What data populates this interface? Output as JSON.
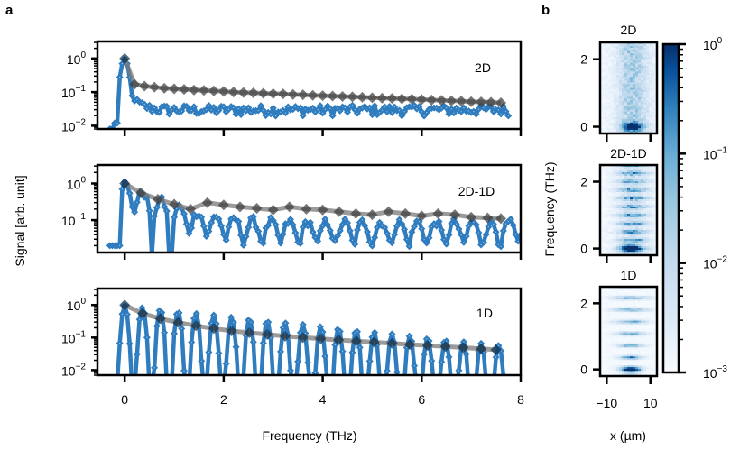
{
  "figure": {
    "panel_a_label": "a",
    "panel_b_label": "b"
  },
  "colors": {
    "measured": "#2f7cbf",
    "measured_marker_dot": "#a8cbe8",
    "envelope_line": "#7a7a7a",
    "envelope_marker": "#3b3b3b",
    "peak_marker": "#0b2c48",
    "colormap_low": "#f7fbff",
    "colormap_high": "#08306b"
  },
  "chart_data": [
    {
      "type": "line",
      "id": "spectrum-2d",
      "panel": "a",
      "title": "2D",
      "xlabel": "",
      "ylabel": "",
      "yscale": "log",
      "xlim": [
        -0.55,
        8.0
      ],
      "ylim": [
        0.008,
        3.2
      ],
      "xticks": [
        0,
        2,
        4,
        6,
        8
      ],
      "yticks": [
        {
          "value": 1,
          "label_base": "10",
          "label_exp": "0"
        },
        {
          "value": 0.1,
          "label_base": "10",
          "label_exp": "−1"
        },
        {
          "value": 0.01,
          "label_base": "10",
          "label_exp": "−2"
        }
      ],
      "series": [
        {
          "name": "signal",
          "style": "blue-diamond-line",
          "x_start": -0.3,
          "x_end": 7.75,
          "x_step": 0.05,
          "shape": "peak-then-noise",
          "baseline": 0.03,
          "peak": {
            "x": 0.0,
            "value": 0.95
          }
        },
        {
          "name": "envelope",
          "style": "gray-diamond-line",
          "x": [
            0.0,
            0.2,
            0.4,
            0.6,
            0.8,
            1.0,
            1.2,
            1.4,
            1.6,
            1.8,
            2.0,
            2.2,
            2.4,
            2.6,
            2.8,
            3.0,
            3.2,
            3.4,
            3.6,
            3.8,
            4.0,
            4.2,
            4.4,
            4.6,
            4.8,
            5.0,
            5.2,
            5.4,
            5.6,
            5.8,
            6.0,
            6.2,
            6.4,
            6.6,
            6.8,
            7.0,
            7.2,
            7.4,
            7.6
          ],
          "values": [
            1.0,
            0.17,
            0.15,
            0.14,
            0.13,
            0.125,
            0.12,
            0.115,
            0.112,
            0.108,
            0.105,
            0.1,
            0.097,
            0.095,
            0.092,
            0.09,
            0.088,
            0.085,
            0.083,
            0.08,
            0.078,
            0.076,
            0.074,
            0.072,
            0.07,
            0.068,
            0.066,
            0.065,
            0.063,
            0.062,
            0.06,
            0.058,
            0.057,
            0.055,
            0.054,
            0.052,
            0.051,
            0.05,
            0.048
          ]
        }
      ]
    },
    {
      "type": "line",
      "id": "spectrum-2d-1d",
      "panel": "a",
      "title": "2D-1D",
      "xlabel": "",
      "ylabel": "Signal [arb. unit]",
      "yscale": "log",
      "xlim": [
        -0.55,
        8.0
      ],
      "ylim": [
        0.013,
        3.2
      ],
      "xticks": [
        0,
        2,
        4,
        6,
        8
      ],
      "yticks": [
        {
          "value": 1,
          "label_base": "10",
          "label_exp": "0"
        },
        {
          "value": 0.1,
          "label_base": "10",
          "label_exp": "−1"
        }
      ],
      "series": [
        {
          "name": "signal",
          "style": "blue-diamond-line",
          "x_start": -0.3,
          "x_end": 8.0,
          "x_step": 0.05,
          "shape": "oscillating",
          "period": 0.37,
          "baseline": 0.06
        },
        {
          "name": "envelope",
          "style": "gray-diamond-line",
          "x": [
            0.0,
            0.33,
            0.67,
            1.0,
            1.33,
            1.67,
            2.0,
            2.33,
            2.67,
            3.0,
            3.33,
            3.67,
            4.0,
            4.33,
            4.67,
            5.0,
            5.33,
            5.67,
            6.0,
            6.33,
            6.67,
            7.0,
            7.33,
            7.6
          ],
          "values": [
            1.0,
            0.55,
            0.37,
            0.27,
            0.2,
            0.3,
            0.26,
            0.23,
            0.21,
            0.19,
            0.23,
            0.2,
            0.19,
            0.17,
            0.15,
            0.14,
            0.17,
            0.15,
            0.13,
            0.15,
            0.14,
            0.12,
            0.115,
            0.11
          ]
        }
      ]
    },
    {
      "type": "line",
      "id": "spectrum-1d",
      "panel": "a",
      "title": "1D",
      "xlabel": "Frequency (THz)",
      "ylabel": "",
      "yscale": "log",
      "xlim": [
        -0.55,
        8.0
      ],
      "ylim": [
        0.007,
        3.2
      ],
      "xticks": [
        0,
        2,
        4,
        6,
        8
      ],
      "yticks": [
        {
          "value": 1,
          "label_base": "10",
          "label_exp": "0"
        },
        {
          "value": 0.1,
          "label_base": "10",
          "label_exp": "−1"
        },
        {
          "value": 0.01,
          "label_base": "10",
          "label_exp": "−2"
        }
      ],
      "series": [
        {
          "name": "signal",
          "style": "blue-diamond-line",
          "x_start": -0.3,
          "x_end": 7.75,
          "x_step": 0.05,
          "shape": "comb",
          "period": 0.36
        },
        {
          "name": "envelope",
          "style": "gray-diamond-line",
          "x": [
            0.0,
            0.36,
            0.72,
            1.08,
            1.44,
            1.8,
            2.16,
            2.52,
            2.88,
            3.24,
            3.6,
            3.96,
            4.32,
            4.68,
            5.04,
            5.4,
            5.76,
            6.12,
            6.48,
            6.84,
            7.2,
            7.5
          ],
          "values": [
            1.0,
            0.55,
            0.38,
            0.29,
            0.23,
            0.19,
            0.16,
            0.14,
            0.125,
            0.11,
            0.1,
            0.092,
            0.084,
            0.078,
            0.072,
            0.066,
            0.061,
            0.057,
            0.053,
            0.049,
            0.045,
            0.042
          ]
        }
      ]
    },
    {
      "type": "heatmap",
      "id": "map-2d",
      "panel": "b",
      "title": "2D",
      "xlabel": "",
      "ylabel": "",
      "xlim": [
        -13,
        13
      ],
      "ylim": [
        -0.2,
        2.5
      ],
      "xticks": [
        -10,
        10
      ],
      "yticks": [
        0,
        2
      ],
      "pattern": "broad-decay"
    },
    {
      "type": "heatmap",
      "id": "map-2d-1d",
      "panel": "b",
      "title": "2D-1D",
      "xlabel": "",
      "ylabel": "Frequency (THz)",
      "xlim": [
        -13,
        13
      ],
      "ylim": [
        -0.2,
        2.5
      ],
      "xticks": [
        -10,
        10
      ],
      "yticks": [
        0,
        2
      ],
      "pattern": "mixed-bands"
    },
    {
      "type": "heatmap",
      "id": "map-1d",
      "panel": "b",
      "title": "1D",
      "xlabel": "x (µm)",
      "ylabel": "",
      "xlim": [
        -13,
        13
      ],
      "ylim": [
        -0.2,
        2.5
      ],
      "xticks": [
        -10,
        10
      ],
      "xtick_labels": [
        "−10",
        "10"
      ],
      "yticks": [
        0,
        2
      ],
      "pattern": "discrete-bands",
      "band_spacing": 0.36
    },
    {
      "type": "colorbar",
      "id": "colorbar",
      "scale": "log",
      "range": [
        0.001,
        1
      ],
      "ticks": [
        {
          "value": 1,
          "label_base": "10",
          "label_exp": "0"
        },
        {
          "value": 0.1,
          "label_base": "10",
          "label_exp": "−1"
        },
        {
          "value": 0.01,
          "label_base": "10",
          "label_exp": "−2"
        },
        {
          "value": 0.001,
          "label_base": "10",
          "label_exp": "−3"
        }
      ],
      "colormap": "Blues"
    }
  ]
}
